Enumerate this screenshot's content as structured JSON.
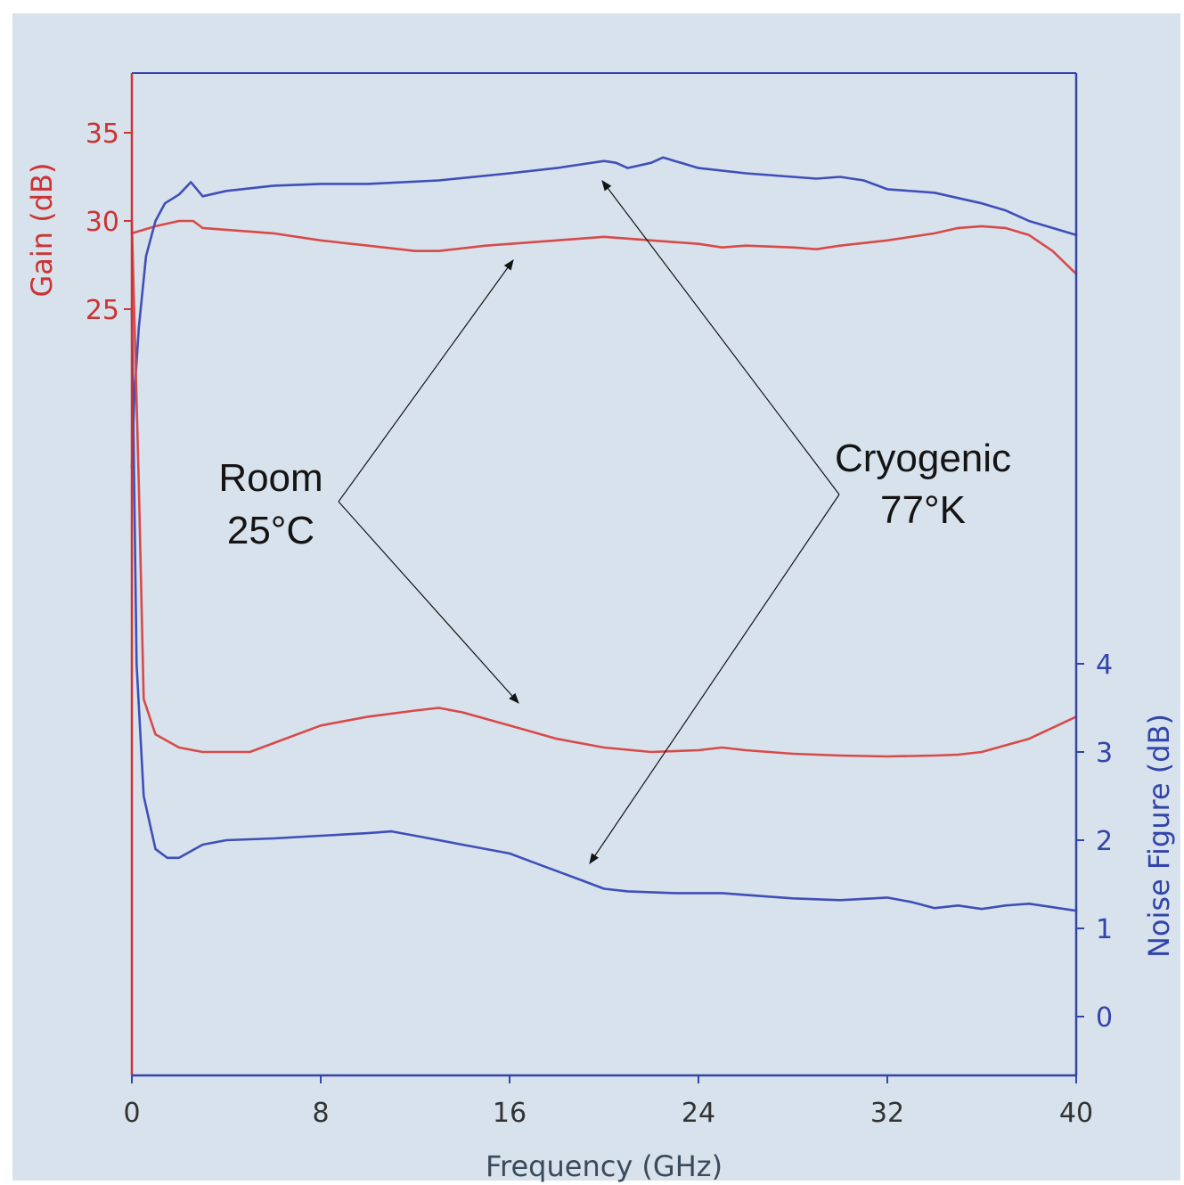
{
  "chart_data": {
    "type": "line",
    "xlabel": "Frequency (GHz)",
    "ylabel_left": "Gain (dB)",
    "ylabel_right": "Noise Figure (dB)",
    "xlim": [
      0,
      40
    ],
    "x_ticks": [
      "0",
      "8",
      "16",
      "24",
      "32",
      "40"
    ],
    "y_left_ticks": [
      "35",
      "30",
      "25"
    ],
    "y_right_ticks": [
      "4",
      "3",
      "2",
      "1",
      "0"
    ],
    "grid": false,
    "colors": {
      "room": "#d84a4a",
      "cryogenic": "#3f4fb8",
      "background": "#d7e2ec",
      "axis_left": "#cc3333",
      "axis_right": "#3344aa",
      "arrow": "#141414"
    },
    "annotations": [
      {
        "lines": [
          "Room",
          "25°C"
        ]
      },
      {
        "lines": [
          "Cryogenic",
          "77°K"
        ]
      }
    ],
    "series": [
      {
        "axis": "gain",
        "color": "#d84a4a",
        "x": [
          0,
          0.5,
          1,
          2,
          2.6,
          3,
          4,
          6,
          8,
          10,
          12,
          13,
          15,
          18,
          20,
          22,
          24,
          25,
          26,
          28,
          29,
          30,
          32,
          34,
          35,
          36,
          37,
          38,
          39,
          40
        ],
        "y": [
          29.3,
          29.5,
          29.7,
          30.0,
          30.0,
          29.6,
          29.5,
          29.3,
          28.9,
          28.6,
          28.3,
          28.3,
          28.6,
          28.9,
          29.1,
          28.9,
          28.7,
          28.5,
          28.6,
          28.5,
          28.4,
          28.6,
          28.9,
          29.3,
          29.6,
          29.7,
          29.6,
          29.2,
          28.3,
          27.0
        ]
      },
      {
        "axis": "gain",
        "color": "#3f4fb8",
        "x": [
          0,
          0.1,
          0.3,
          0.6,
          1,
          1.4,
          2,
          2.5,
          3,
          4,
          6,
          8,
          10,
          13,
          16,
          18,
          19,
          20,
          20.5,
          21,
          22,
          22.5,
          23,
          24,
          26,
          28,
          29,
          30,
          31,
          32,
          34,
          35,
          36,
          37,
          38,
          39,
          40
        ],
        "y": [
          16.0,
          20.0,
          24.0,
          28.0,
          30.0,
          31.0,
          31.5,
          32.2,
          31.4,
          31.7,
          32.0,
          32.1,
          32.1,
          32.3,
          32.7,
          33.0,
          33.2,
          33.4,
          33.3,
          33.0,
          33.3,
          33.6,
          33.4,
          33.0,
          32.7,
          32.5,
          32.4,
          32.5,
          32.3,
          31.8,
          31.6,
          31.3,
          31.0,
          30.6,
          30.0,
          29.6,
          29.2
        ]
      },
      {
        "axis": "nf",
        "color": "#d84a4a",
        "x": [
          0,
          0.3,
          0.5,
          1,
          2,
          3,
          5,
          6,
          8,
          10,
          12,
          13,
          14,
          16,
          18,
          20,
          22,
          24,
          25,
          26,
          28,
          30,
          32,
          34,
          35,
          36,
          38,
          40
        ],
        "y": [
          9.0,
          6.0,
          3.6,
          3.2,
          3.05,
          3.0,
          3.0,
          3.1,
          3.3,
          3.4,
          3.47,
          3.5,
          3.45,
          3.3,
          3.15,
          3.05,
          3.0,
          3.02,
          3.05,
          3.02,
          2.98,
          2.96,
          2.95,
          2.96,
          2.97,
          3.0,
          3.15,
          3.4
        ]
      },
      {
        "axis": "nf",
        "color": "#3f4fb8",
        "x": [
          0,
          0.2,
          0.5,
          1,
          1.5,
          2,
          3,
          4,
          6,
          8,
          10,
          11,
          12,
          14,
          16,
          17,
          19,
          20,
          21,
          23,
          25,
          26,
          28,
          30,
          32,
          33,
          34,
          35,
          36,
          37,
          38,
          39,
          40
        ],
        "y": [
          8.0,
          4.0,
          2.5,
          1.9,
          1.8,
          1.8,
          1.95,
          2.0,
          2.02,
          2.05,
          2.08,
          2.1,
          2.05,
          1.95,
          1.85,
          1.75,
          1.55,
          1.45,
          1.42,
          1.4,
          1.4,
          1.38,
          1.34,
          1.32,
          1.35,
          1.3,
          1.23,
          1.26,
          1.22,
          1.26,
          1.28,
          1.24,
          1.2
        ]
      }
    ]
  }
}
